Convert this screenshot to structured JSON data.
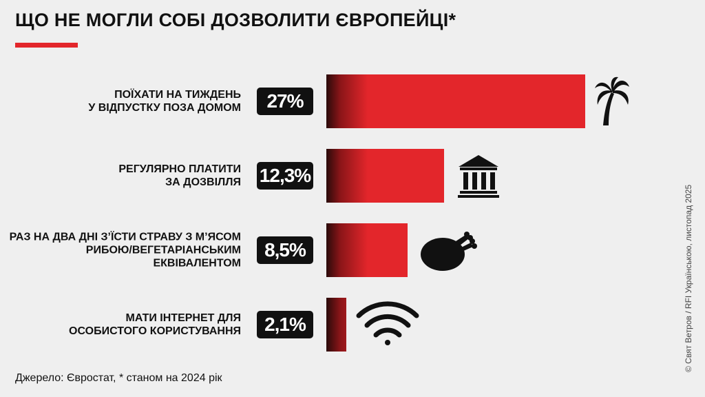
{
  "chart_data": {
    "type": "bar",
    "orientation": "horizontal",
    "title": "ЩО НЕ МОГЛИ СОБІ ДОЗВОЛИТИ ЄВРОПЕЙЦІ*",
    "categories": [
      "ПОЇХАТИ НА ТИЖДЕНЬ\nУ ВІДПУСТКУ ПОЗА ДОМОМ",
      "РЕГУЛЯРНО ПЛАТИТИ\nЗА ДОЗВІЛЛЯ",
      "РАЗ НА ДВА ДНІ З’ЇСТИ СТРАВУ З М’ЯСОМ\nРИБОЮ/ВЕГЕТАРІАНСЬКИМ ЕКВІВАЛЕНТОМ",
      "МАТИ ІНТЕРНЕТ ДЛЯ\nОСОБИСТОГО КОРИСТУВАННЯ"
    ],
    "values": [
      27,
      12.3,
      8.5,
      2.1
    ],
    "value_labels": [
      "27%",
      "12,3%",
      "8,5%",
      "2,1%"
    ],
    "color": "#e3262b",
    "source": "Джерело: Євростат, * станом на 2024 рік",
    "credit": "© Свят Ветров / RFI Українською, листопад 2025"
  }
}
